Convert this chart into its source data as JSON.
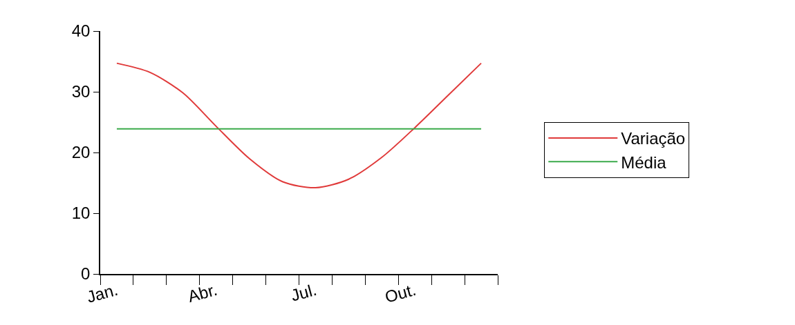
{
  "chart_data": {
    "type": "line",
    "categories": [
      "Jan.",
      null,
      null,
      "Abr.",
      null,
      null,
      "Jul.",
      null,
      null,
      "Out.",
      null,
      null
    ],
    "series": [
      {
        "name": "Variação",
        "color": "#e03a3a",
        "values": [
          34.7,
          33.2,
          29.8,
          24.3,
          19.0,
          15.2,
          14.2,
          15.6,
          19.2,
          24.1,
          29.4,
          34.7
        ]
      },
      {
        "name": "Média",
        "color": "#3aaa4a",
        "values": [
          23.9,
          23.9,
          23.9,
          23.9,
          23.9,
          23.9,
          23.9,
          23.9,
          23.9,
          23.9,
          23.9,
          23.9
        ]
      }
    ],
    "ylim": [
      0,
      40
    ],
    "yticks": [
      0,
      10,
      20,
      30,
      40
    ],
    "legend": "right",
    "marker": "none",
    "line_style": "solid"
  }
}
